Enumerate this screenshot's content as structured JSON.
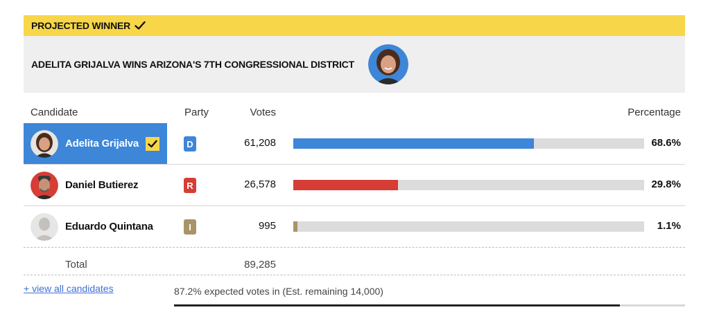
{
  "banner": {
    "label": "PROJECTED WINNER",
    "check_icon": "check-icon"
  },
  "headline": {
    "text": "ADELITA GRIJALVA WINS ARIZONA'S 7TH CONGRESSIONAL DISTRICT"
  },
  "table": {
    "headers": {
      "candidate": "Candidate",
      "party": "Party",
      "votes": "Votes",
      "percentage": "Percentage"
    },
    "rows": [
      {
        "name": "Adelita Grijalva",
        "party": "D",
        "party_color": "#3d86d8",
        "votes": "61,208",
        "percentage": "68.6%",
        "share": 0.686,
        "bar_color": "#3d86d8",
        "winner": true
      },
      {
        "name": "Daniel Butierez",
        "party": "R",
        "party_color": "#d63d35",
        "votes": "26,578",
        "percentage": "29.8%",
        "share": 0.298,
        "bar_color": "#d63d35",
        "winner": false
      },
      {
        "name": "Eduardo Quintana",
        "party": "I",
        "party_color": "#a89468",
        "votes": "995",
        "percentage": "1.1%",
        "share": 0.011,
        "bar_color": "#a89468",
        "winner": false
      }
    ],
    "total": {
      "label": "Total",
      "votes": "89,285"
    }
  },
  "footer": {
    "view_all": "+ view all candidates",
    "expected_text": "87.2% expected votes in (Est. remaining 14,000)",
    "expected_share": 0.872
  },
  "colors": {
    "accent_yellow": "#f7d64a",
    "winner_blue": "#3d86d8",
    "republican_red": "#d63d35",
    "independent": "#a89468"
  }
}
